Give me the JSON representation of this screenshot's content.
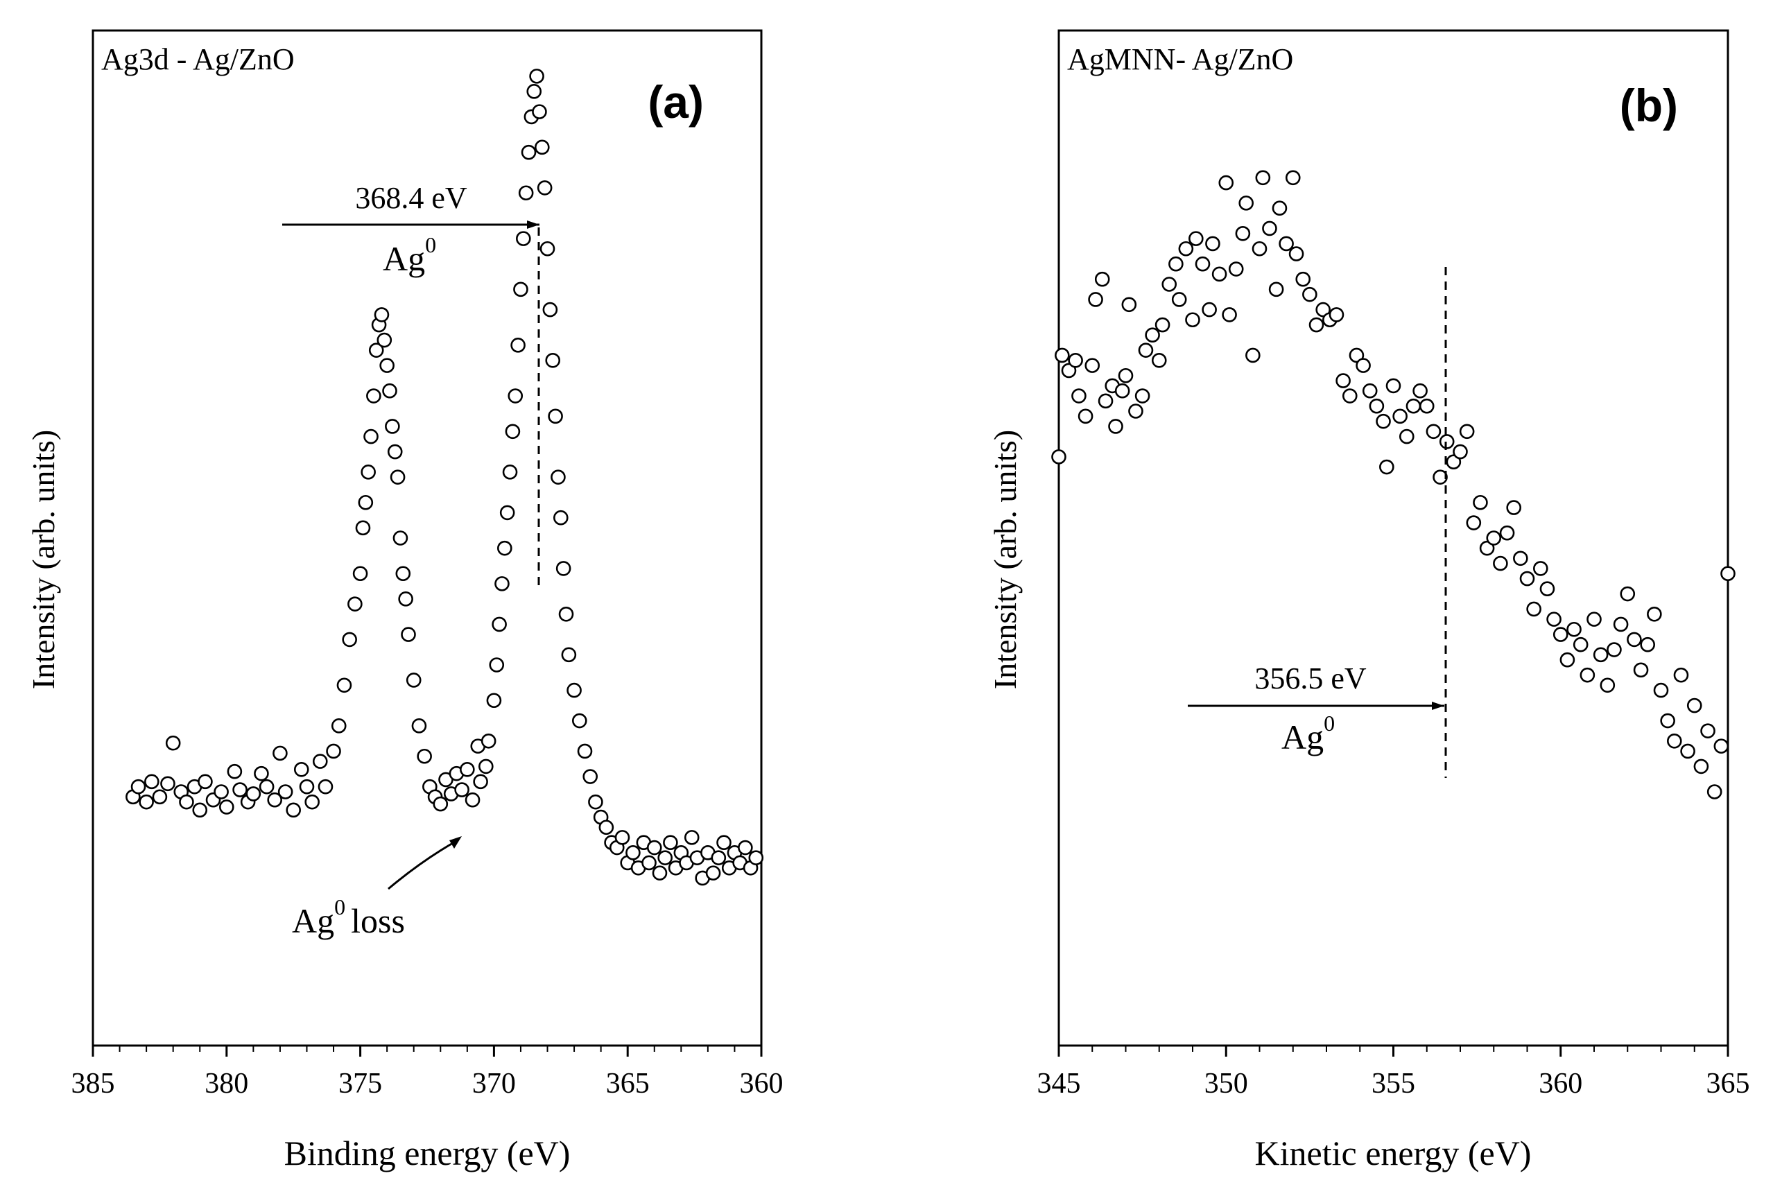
{
  "colors": {
    "foreground": "#000000",
    "background": "#ffffff"
  },
  "chart_data": [
    {
      "type": "scatter",
      "panel_label": "(a)",
      "title": "Ag3d - Ag/ZnO",
      "xlabel": "Binding energy (eV)",
      "ylabel": "Intensity (arb. units)",
      "xlim": [
        385,
        360
      ],
      "x_reversed": true,
      "ylim": [
        0,
        100
      ],
      "xticks": [
        385,
        380,
        375,
        370,
        365,
        360
      ],
      "xtick_labels": [
        "385",
        "380",
        "375",
        "370",
        "365",
        "360"
      ],
      "grid": false,
      "y_tick_labels_shown": false,
      "marker": "open-circle",
      "series": [
        {
          "name": "Ag3d",
          "points": [
            [
              383.5,
              24.5
            ],
            [
              383.3,
              25.5
            ],
            [
              383.0,
              24.0
            ],
            [
              382.8,
              26.0
            ],
            [
              382.5,
              24.5
            ],
            [
              382.2,
              25.8
            ],
            [
              382.0,
              29.8
            ],
            [
              381.7,
              25.0
            ],
            [
              381.5,
              24.0
            ],
            [
              381.2,
              25.5
            ],
            [
              381.0,
              23.2
            ],
            [
              380.8,
              26.0
            ],
            [
              380.5,
              24.2
            ],
            [
              380.2,
              25.0
            ],
            [
              380.0,
              23.5
            ],
            [
              379.7,
              27.0
            ],
            [
              379.5,
              25.2
            ],
            [
              379.2,
              24.0
            ],
            [
              379.0,
              24.8
            ],
            [
              378.7,
              26.8
            ],
            [
              378.5,
              25.5
            ],
            [
              378.2,
              24.2
            ],
            [
              378.0,
              28.8
            ],
            [
              377.8,
              25.0
            ],
            [
              377.5,
              23.2
            ],
            [
              377.2,
              27.2
            ],
            [
              377.0,
              25.5
            ],
            [
              376.8,
              24.0
            ],
            [
              376.5,
              28.0
            ],
            [
              376.3,
              25.5
            ],
            [
              376.0,
              29.0
            ],
            [
              375.8,
              31.5
            ],
            [
              375.6,
              35.5
            ],
            [
              375.4,
              40.0
            ],
            [
              375.2,
              43.5
            ],
            [
              375.0,
              46.5
            ],
            [
              374.9,
              51.0
            ],
            [
              374.8,
              53.5
            ],
            [
              374.7,
              56.5
            ],
            [
              374.6,
              60.0
            ],
            [
              374.5,
              64.0
            ],
            [
              374.4,
              68.5
            ],
            [
              374.3,
              71.0
            ],
            [
              374.2,
              72.0
            ],
            [
              374.1,
              69.5
            ],
            [
              374.0,
              67.0
            ],
            [
              373.9,
              64.5
            ],
            [
              373.8,
              61.0
            ],
            [
              373.7,
              58.5
            ],
            [
              373.6,
              56.0
            ],
            [
              373.5,
              50.0
            ],
            [
              373.4,
              46.5
            ],
            [
              373.3,
              44.0
            ],
            [
              373.2,
              40.5
            ],
            [
              373.0,
              36.0
            ],
            [
              372.8,
              31.5
            ],
            [
              372.6,
              28.5
            ],
            [
              372.4,
              25.5
            ],
            [
              372.2,
              24.5
            ],
            [
              372.0,
              23.8
            ],
            [
              371.8,
              26.2
            ],
            [
              371.6,
              24.8
            ],
            [
              371.4,
              26.8
            ],
            [
              371.2,
              25.2
            ],
            [
              371.0,
              27.2
            ],
            [
              370.8,
              24.2
            ],
            [
              370.6,
              29.5
            ],
            [
              370.5,
              26.0
            ],
            [
              370.3,
              27.5
            ],
            [
              370.2,
              30.0
            ],
            [
              370.0,
              34.0
            ],
            [
              369.9,
              37.5
            ],
            [
              369.8,
              41.5
            ],
            [
              369.7,
              45.5
            ],
            [
              369.6,
              49.0
            ],
            [
              369.5,
              52.5
            ],
            [
              369.4,
              56.5
            ],
            [
              369.3,
              60.5
            ],
            [
              369.2,
              64.0
            ],
            [
              369.1,
              69.0
            ],
            [
              369.0,
              74.5
            ],
            [
              368.9,
              79.5
            ],
            [
              368.8,
              84.0
            ],
            [
              368.7,
              88.0
            ],
            [
              368.6,
              91.5
            ],
            [
              368.5,
              94.0
            ],
            [
              368.4,
              95.5
            ],
            [
              368.3,
              92.0
            ],
            [
              368.2,
              88.5
            ],
            [
              368.1,
              84.5
            ],
            [
              368.0,
              78.5
            ],
            [
              367.9,
              72.5
            ],
            [
              367.8,
              67.5
            ],
            [
              367.7,
              62.0
            ],
            [
              367.6,
              56.0
            ],
            [
              367.5,
              52.0
            ],
            [
              367.4,
              47.0
            ],
            [
              367.3,
              42.5
            ],
            [
              367.2,
              38.5
            ],
            [
              367.0,
              35.0
            ],
            [
              366.8,
              32.0
            ],
            [
              366.6,
              29.0
            ],
            [
              366.4,
              26.5
            ],
            [
              366.2,
              24.0
            ],
            [
              366.0,
              22.5
            ],
            [
              365.8,
              21.5
            ],
            [
              365.6,
              20.0
            ],
            [
              365.4,
              19.5
            ],
            [
              365.2,
              20.5
            ],
            [
              365.0,
              18.0
            ],
            [
              364.8,
              19.0
            ],
            [
              364.6,
              17.5
            ],
            [
              364.4,
              20.0
            ],
            [
              364.2,
              18.0
            ],
            [
              364.0,
              19.5
            ],
            [
              363.8,
              17.0
            ],
            [
              363.6,
              18.5
            ],
            [
              363.4,
              20.0
            ],
            [
              363.2,
              17.5
            ],
            [
              363.0,
              19.0
            ],
            [
              362.8,
              18.0
            ],
            [
              362.6,
              20.5
            ],
            [
              362.4,
              18.5
            ],
            [
              362.2,
              16.5
            ],
            [
              362.0,
              19.0
            ],
            [
              361.8,
              17.0
            ],
            [
              361.6,
              18.5
            ],
            [
              361.4,
              20.0
            ],
            [
              361.2,
              17.5
            ],
            [
              361.0,
              19.0
            ],
            [
              360.8,
              18.0
            ],
            [
              360.6,
              19.5
            ],
            [
              360.4,
              17.5
            ],
            [
              360.2,
              18.5
            ]
          ]
        }
      ],
      "annotations": [
        {
          "id": "ag0-peak",
          "text": "368.4 eV",
          "species": "Ag",
          "superscript": "0",
          "x_value": 368.4,
          "arrow_from_x": 378.0
        },
        {
          "id": "ag0-loss",
          "species": "Ag",
          "superscript": "0",
          "text_suffix": "loss",
          "x_value": 371.3
        }
      ]
    },
    {
      "type": "scatter",
      "panel_label": "(b)",
      "title": "AgMNN- Ag/ZnO",
      "xlabel": "Kinetic energy (eV)",
      "ylabel": "Intensity (arb. units)",
      "xlim": [
        345,
        365
      ],
      "x_reversed": false,
      "ylim": [
        0,
        100
      ],
      "xticks": [
        345,
        350,
        355,
        360,
        365
      ],
      "xtick_labels": [
        "345",
        "350",
        "355",
        "360",
        "365"
      ],
      "grid": false,
      "y_tick_labels_shown": false,
      "marker": "open-circle",
      "series": [
        {
          "name": "AgMNN",
          "points": [
            [
              345.0,
              58.0
            ],
            [
              345.1,
              68.0
            ],
            [
              345.3,
              66.5
            ],
            [
              345.5,
              67.5
            ],
            [
              345.6,
              64.0
            ],
            [
              345.8,
              62.0
            ],
            [
              346.0,
              67.0
            ],
            [
              346.1,
              73.5
            ],
            [
              346.3,
              75.5
            ],
            [
              346.4,
              63.5
            ],
            [
              346.6,
              65.0
            ],
            [
              346.7,
              61.0
            ],
            [
              346.9,
              64.5
            ],
            [
              347.0,
              66.0
            ],
            [
              347.1,
              73.0
            ],
            [
              347.3,
              62.5
            ],
            [
              347.5,
              64.0
            ],
            [
              347.6,
              68.5
            ],
            [
              347.8,
              70.0
            ],
            [
              348.0,
              67.5
            ],
            [
              348.1,
              71.0
            ],
            [
              348.3,
              75.0
            ],
            [
              348.5,
              77.0
            ],
            [
              348.6,
              73.5
            ],
            [
              348.8,
              78.5
            ],
            [
              349.0,
              71.5
            ],
            [
              349.1,
              79.5
            ],
            [
              349.3,
              77.0
            ],
            [
              349.5,
              72.5
            ],
            [
              349.6,
              79.0
            ],
            [
              349.8,
              76.0
            ],
            [
              350.0,
              85.0
            ],
            [
              350.1,
              72.0
            ],
            [
              350.3,
              76.5
            ],
            [
              350.5,
              80.0
            ],
            [
              350.6,
              83.0
            ],
            [
              350.8,
              68.0
            ],
            [
              351.0,
              78.5
            ],
            [
              351.1,
              85.5
            ],
            [
              351.3,
              80.5
            ],
            [
              351.5,
              74.5
            ],
            [
              351.6,
              82.5
            ],
            [
              351.8,
              79.0
            ],
            [
              352.0,
              85.5
            ],
            [
              352.1,
              78.0
            ],
            [
              352.3,
              75.5
            ],
            [
              352.5,
              74.0
            ],
            [
              352.7,
              71.0
            ],
            [
              352.9,
              72.5
            ],
            [
              353.1,
              71.5
            ],
            [
              353.3,
              72.0
            ],
            [
              353.5,
              65.5
            ],
            [
              353.7,
              64.0
            ],
            [
              353.9,
              68.0
            ],
            [
              354.1,
              67.0
            ],
            [
              354.3,
              64.5
            ],
            [
              354.5,
              63.0
            ],
            [
              354.7,
              61.5
            ],
            [
              354.8,
              57.0
            ],
            [
              355.0,
              65.0
            ],
            [
              355.2,
              62.0
            ],
            [
              355.4,
              60.0
            ],
            [
              355.6,
              63.0
            ],
            [
              355.8,
              64.5
            ],
            [
              356.0,
              63.0
            ],
            [
              356.2,
              60.5
            ],
            [
              356.4,
              56.0
            ],
            [
              356.6,
              59.5
            ],
            [
              356.8,
              57.5
            ],
            [
              357.0,
              58.5
            ],
            [
              357.2,
              60.5
            ],
            [
              357.4,
              51.5
            ],
            [
              357.6,
              53.5
            ],
            [
              357.8,
              49.0
            ],
            [
              358.0,
              50.0
            ],
            [
              358.2,
              47.5
            ],
            [
              358.4,
              50.5
            ],
            [
              358.6,
              53.0
            ],
            [
              358.8,
              48.0
            ],
            [
              359.0,
              46.0
            ],
            [
              359.2,
              43.0
            ],
            [
              359.4,
              47.0
            ],
            [
              359.6,
              45.0
            ],
            [
              359.8,
              42.0
            ],
            [
              360.0,
              40.5
            ],
            [
              360.2,
              38.0
            ],
            [
              360.4,
              41.0
            ],
            [
              360.6,
              39.5
            ],
            [
              360.8,
              36.5
            ],
            [
              361.0,
              42.0
            ],
            [
              361.2,
              38.5
            ],
            [
              361.4,
              35.5
            ],
            [
              361.6,
              39.0
            ],
            [
              361.8,
              41.5
            ],
            [
              362.0,
              44.5
            ],
            [
              362.2,
              40.0
            ],
            [
              362.4,
              37.0
            ],
            [
              362.6,
              39.5
            ],
            [
              362.8,
              42.5
            ],
            [
              363.0,
              35.0
            ],
            [
              363.2,
              32.0
            ],
            [
              363.4,
              30.0
            ],
            [
              363.6,
              36.5
            ],
            [
              363.8,
              29.0
            ],
            [
              364.0,
              33.5
            ],
            [
              364.2,
              27.5
            ],
            [
              364.4,
              31.0
            ],
            [
              364.6,
              25.0
            ],
            [
              364.8,
              29.5
            ],
            [
              365.0,
              46.5
            ]
          ]
        }
      ],
      "annotations": [
        {
          "id": "ag0-peak",
          "text": "356.5 eV",
          "species": "Ag",
          "superscript": "0",
          "x_value": 356.5,
          "arrow_from_x": 349.0
        }
      ]
    }
  ]
}
